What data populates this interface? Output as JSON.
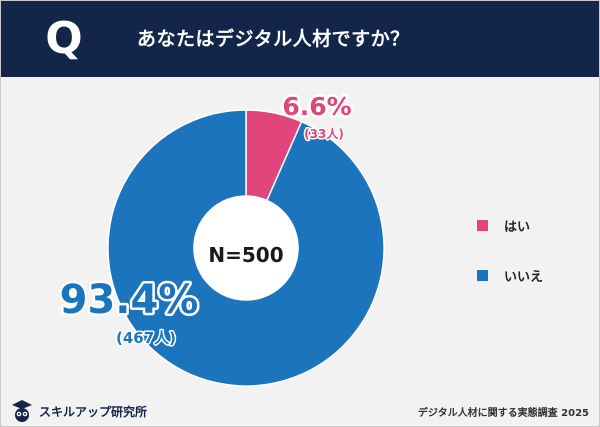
{
  "header": {
    "mark": "Q",
    "question": "あなたはデジタル人材ですか？"
  },
  "colors": {
    "header_bg": "#13264a",
    "yes": "#e0457b",
    "no": "#1c74bd",
    "background": "#f2f2f2"
  },
  "chart_data": {
    "type": "pie",
    "variant": "donut",
    "center_label": "N=500",
    "slices": [
      {
        "label": "はい",
        "value": 6.6,
        "value_text": "6.6%",
        "count_text": "(33人)",
        "color": "#e0457b"
      },
      {
        "label": "いいえ",
        "value": 93.4,
        "value_text": "93.4%",
        "count_text": "(467人)",
        "color": "#1c74bd"
      }
    ],
    "legend_position": "right"
  },
  "footer": {
    "brand": "スキルアップ研究所",
    "credit": "デジタル人材に関する実態調査 2025"
  }
}
